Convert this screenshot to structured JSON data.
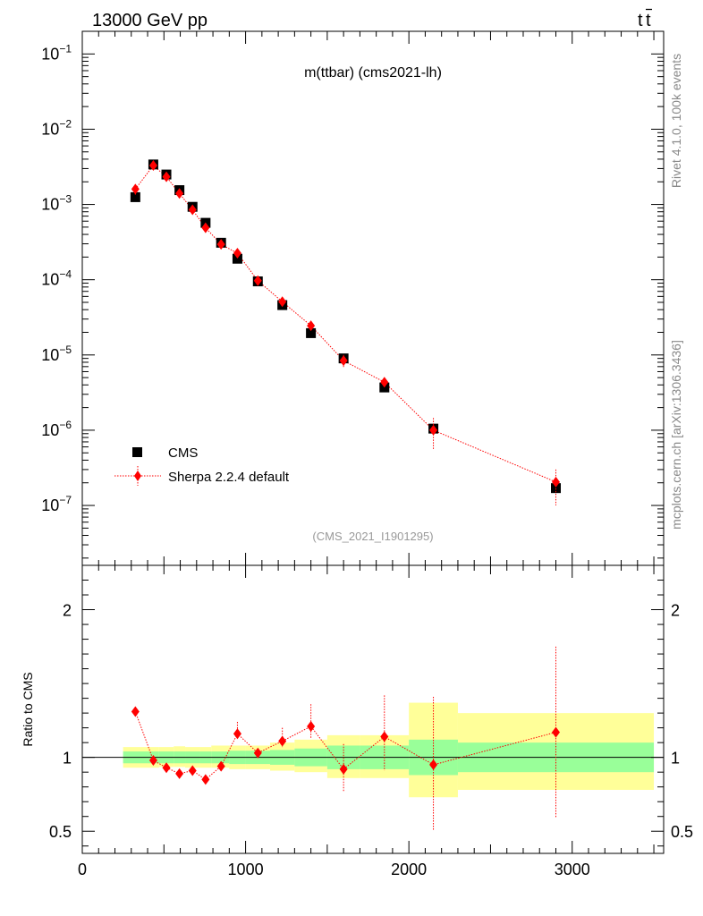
{
  "header": {
    "left": "13000 GeV pp",
    "right_main": "t",
    "right_bar": "t"
  },
  "side_labels": {
    "rivet": "Rivet 4.1.0,  100k events",
    "mcplots": "mcplots.cern.ch [arXiv:1306.3436]"
  },
  "chart_data": [
    {
      "type": "scatter",
      "panel": "main",
      "title": "m(ttbar) (cms2021-lh)",
      "watermark": "(CMS_2021_I1901295)",
      "yscale": "log",
      "ylim": [
        1.6e-08,
        0.2
      ],
      "xlim": [
        0,
        3560
      ],
      "ytick_labels": [
        {
          "base": "10",
          "exp": "−1",
          "value": 0.1
        },
        {
          "base": "10",
          "exp": "−2",
          "value": 0.01
        },
        {
          "base": "10",
          "exp": "−3",
          "value": 0.001
        },
        {
          "base": "10",
          "exp": "−4",
          "value": 0.0001
        },
        {
          "base": "10",
          "exp": "−5",
          "value": 1e-05
        },
        {
          "base": "10",
          "exp": "−6",
          "value": 1e-06
        },
        {
          "base": "10",
          "exp": "−7",
          "value": 1e-07
        }
      ],
      "legend": {
        "position": "bottom-left",
        "entries": [
          "CMS",
          "Sherpa 2.2.4 default"
        ]
      },
      "series": [
        {
          "name": "CMS",
          "marker": "square",
          "color": "#000000",
          "x": [
            325,
            435,
            515,
            595,
            675,
            755,
            850,
            950,
            1075,
            1225,
            1400,
            1600,
            1850,
            2150,
            2900
          ],
          "y": [
            0.00125,
            0.0034,
            0.0025,
            0.00155,
            0.00093,
            0.00057,
            0.00031,
            0.00019,
            9.5e-05,
            4.6e-05,
            1.95e-05,
            9e-06,
            3.7e-06,
            1.05e-06,
            1.7e-07
          ]
        },
        {
          "name": "Sherpa 2.2.4 default",
          "marker": "diamond",
          "color": "#ff0000",
          "x": [
            325,
            435,
            515,
            595,
            675,
            755,
            850,
            950,
            1075,
            1225,
            1400,
            1600,
            1850,
            2150,
            2900
          ],
          "y": [
            0.0016,
            0.0033,
            0.00233,
            0.0014,
            0.00085,
            0.00049,
            0.000295,
            0.000225,
            9.7e-05,
            5.1e-05,
            2.45e-05,
            8.4e-06,
            4.35e-06,
            1e-06,
            2.05e-07
          ],
          "err_lo": [
            0.00135,
            0.00315,
            0.00222,
            0.00133,
            0.00079,
            0.00045,
            0.000275,
            0.0002,
            9e-05,
            4.6e-05,
            2.15e-05,
            6.9e-06,
            3.7e-06,
            5.5e-07,
            1e-07
          ],
          "err_hi": [
            0.0018,
            0.00345,
            0.00245,
            0.00148,
            0.00091,
            0.00053,
            0.000315,
            0.00025,
            0.000105,
            5.6e-05,
            2.75e-05,
            1e-05,
            5e-06,
            1.45e-06,
            3e-07
          ]
        }
      ]
    },
    {
      "type": "scatter",
      "panel": "ratio",
      "ylabel": "Ratio to CMS",
      "ylim": [
        0.35,
        2.3
      ],
      "xlim": [
        0,
        3560
      ],
      "yticks": [
        0.5,
        1,
        2
      ],
      "ytick_labels": [
        "0.5",
        "1",
        "2"
      ],
      "xticks": [
        0,
        1000,
        2000,
        3000
      ],
      "xtick_labels": [
        "0",
        "1000",
        "2000",
        "3000"
      ],
      "bands": {
        "bin_edges": [
          250,
          400,
          470,
          560,
          630,
          720,
          790,
          900,
          1000,
          1150,
          1300,
          1500,
          1700,
          2000,
          2300,
          3500
        ],
        "inner_lo": [
          0.96,
          0.96,
          0.96,
          0.96,
          0.96,
          0.96,
          0.96,
          0.955,
          0.955,
          0.95,
          0.94,
          0.92,
          0.92,
          0.88,
          0.9
        ],
        "inner_hi": [
          1.04,
          1.04,
          1.04,
          1.04,
          1.04,
          1.04,
          1.04,
          1.045,
          1.045,
          1.05,
          1.06,
          1.08,
          1.08,
          1.12,
          1.1
        ],
        "outer_lo": [
          0.93,
          0.93,
          0.935,
          0.935,
          0.93,
          0.93,
          0.93,
          0.92,
          0.92,
          0.91,
          0.9,
          0.86,
          0.86,
          0.73,
          0.78
        ],
        "outer_hi": [
          1.07,
          1.07,
          1.07,
          1.075,
          1.07,
          1.07,
          1.08,
          1.08,
          1.08,
          1.1,
          1.12,
          1.15,
          1.15,
          1.37,
          1.3
        ],
        "inner_color": "#99ff99",
        "outer_color": "#ffff99"
      },
      "series": [
        {
          "name": "Sherpa 2.2.4 default / CMS",
          "marker": "diamond",
          "color": "#ff0000",
          "x": [
            325,
            435,
            515,
            595,
            675,
            755,
            850,
            950,
            1075,
            1225,
            1400,
            1600,
            1850,
            2150,
            2900
          ],
          "y": [
            1.31,
            0.98,
            0.93,
            0.89,
            0.91,
            0.85,
            0.94,
            1.16,
            1.03,
            1.11,
            1.21,
            0.92,
            1.14,
            0.95,
            1.17
          ],
          "err_lo": [
            1.28,
            0.96,
            0.91,
            0.87,
            0.88,
            0.82,
            0.92,
            1.13,
            1.0,
            1.07,
            1.13,
            0.77,
            0.91,
            0.51,
            0.59
          ],
          "err_hi": [
            1.34,
            1.0,
            0.95,
            0.91,
            0.94,
            0.88,
            0.97,
            1.24,
            1.06,
            1.2,
            1.36,
            1.09,
            1.42,
            1.41,
            1.75
          ]
        }
      ]
    }
  ]
}
